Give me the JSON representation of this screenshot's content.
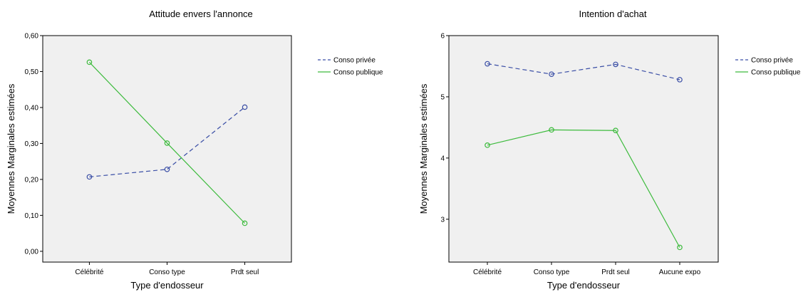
{
  "chart_data": [
    {
      "type": "line",
      "title": "Attitude envers l'annonce",
      "xlabel": "Type d'endosseur",
      "ylabel": "Moyennes Marginales estimées",
      "categories": [
        "Célébrité",
        "Conso type",
        "Prdt seul"
      ],
      "yticks": [
        "0,00",
        "0,10",
        "0,20",
        "0,30",
        "0,40",
        "0,50",
        "0,60"
      ],
      "ylim": [
        -0.03,
        0.6
      ],
      "grid": false,
      "legend_position": "right",
      "series": [
        {
          "name": "Conso privée",
          "values": [
            0.207,
            0.228,
            0.401
          ],
          "color": "#3b4fa6",
          "dash": "dashed",
          "marker": "open-circle"
        },
        {
          "name": "Conso publique",
          "values": [
            0.526,
            0.301,
            0.078
          ],
          "color": "#3dbb3d",
          "dash": "solid",
          "marker": "open-circle"
        }
      ]
    },
    {
      "type": "line",
      "title": "Intention d'achat",
      "xlabel": "Type d'endosseur",
      "ylabel": "Moyennes Marginales estimées",
      "categories": [
        "Célébrité",
        "Conso type",
        "Prdt seul",
        "Aucune expo"
      ],
      "yticks": [
        "3",
        "4",
        "5",
        "6"
      ],
      "ylim": [
        2.3,
        6.0
      ],
      "grid": false,
      "legend_position": "right",
      "series": [
        {
          "name": "Conso privée",
          "values": [
            5.54,
            5.37,
            5.53,
            5.28
          ],
          "color": "#3b4fa6",
          "dash": "dashed",
          "marker": "open-circle"
        },
        {
          "name": "Conso publique",
          "values": [
            4.21,
            4.46,
            4.45,
            2.54
          ],
          "color": "#3dbb3d",
          "dash": "solid",
          "marker": "open-circle"
        }
      ]
    }
  ],
  "colors": {
    "plot_background": "#f0f0f0",
    "frame": "#000000"
  }
}
